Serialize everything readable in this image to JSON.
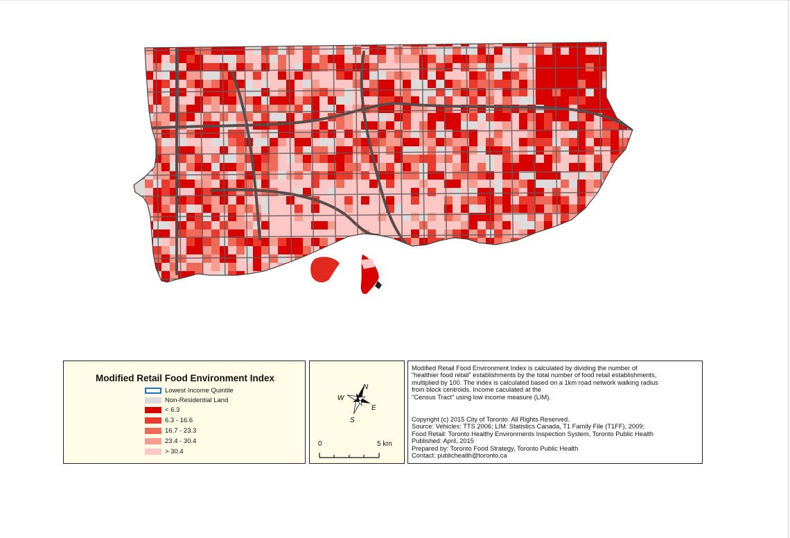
{
  "legend": {
    "title": "Modified Retail Food Environment Index",
    "items": [
      {
        "label": "Lowest Income Quintile",
        "color": "#ffffff",
        "border": "#1f6fd0"
      },
      {
        "label": "Non-Residential Land",
        "color": "#dcdcdc",
        "border": "#dcdcdc"
      },
      {
        "label": "< 6.3",
        "color": "#d90000",
        "border": "#d90000"
      },
      {
        "label": "6.3 - 16.6",
        "color": "#ea3a2d",
        "border": "#ea3a2d"
      },
      {
        "label": "16.7 - 23.3",
        "color": "#f06a5a",
        "border": "#f06a5a"
      },
      {
        "label": "23.4 - 30.4",
        "color": "#f79c90",
        "border": "#f79c90"
      },
      {
        "label": "> 30.4",
        "color": "#fcc7c5",
        "border": "#fcc7c5"
      }
    ]
  },
  "compass": {
    "n": "N",
    "s": "S",
    "e": "E",
    "w": "W"
  },
  "scale": {
    "start": "0",
    "end": "5 km"
  },
  "notes": {
    "description": [
      "Modified Retail Food Environment Index is calculated by dividing the number of",
      "\"healthier food retail\" establishments by the total number of food retail establishments,",
      "multiplied by 100. The index is calculated based on a 1km road network walking radius",
      "from block centroids. Income caculated at the",
      "\"Census Tract\" using low income measure (LIM)."
    ],
    "credits": [
      "Copyright (c) 2015 City of Toronto. All Rights Reserved.",
      "Source: Vehicles: TTS 2006; LIM: Statistics Canada, T1 Family File (T1FF), 2009;",
      "Food Retail: Toronto Healthy Environments Inspection System, Toronto Public Health",
      "Published: April, 2015",
      "Prepared by: Toronto Food Strategy, Toronto Public Health",
      "Contact: publichealth@toronto.ca"
    ]
  }
}
